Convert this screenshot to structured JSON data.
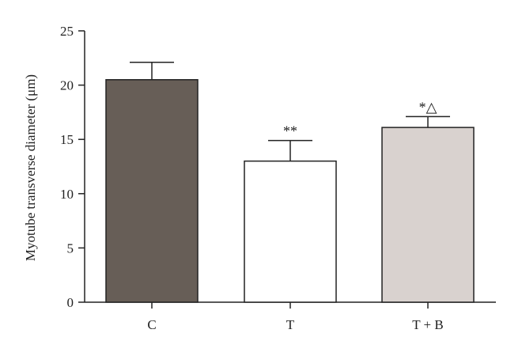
{
  "chart_data": {
    "type": "bar",
    "categories": [
      "C",
      "T",
      "T + B"
    ],
    "values": [
      20.5,
      13.0,
      16.1
    ],
    "errors": [
      1.6,
      1.9,
      1.0
    ],
    "annotations": [
      "",
      "**",
      "*△"
    ],
    "bar_colors": [
      "#675e57",
      "#ffffff",
      "#d9d2cf"
    ],
    "ylabel": "Myotube transverse diameter (μm)",
    "ylim": [
      0,
      25
    ],
    "yticks": [
      0,
      5,
      10,
      15,
      20,
      25
    ],
    "grid": false,
    "legend": false
  }
}
